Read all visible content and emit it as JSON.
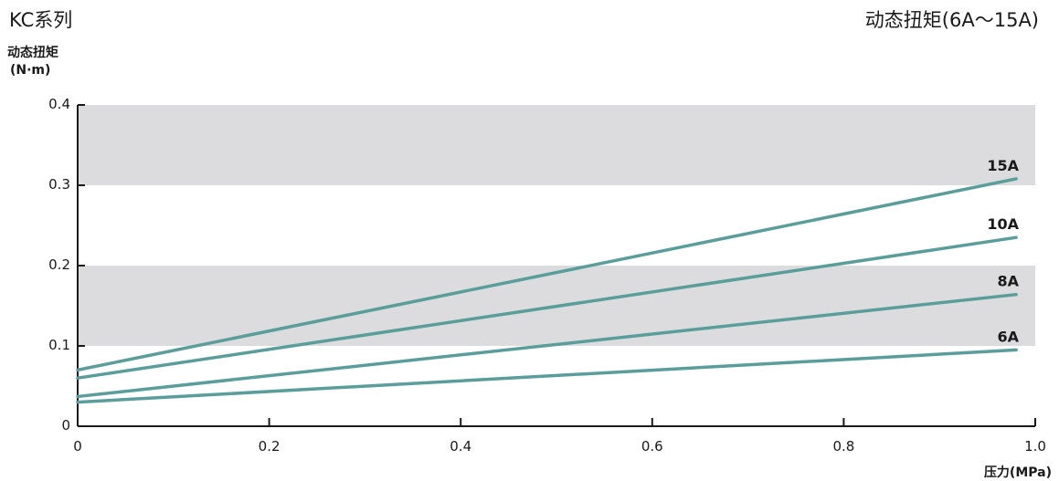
{
  "header": {
    "series_title": "KC系列",
    "chart_title": "动态扭矩(6A～15A)"
  },
  "colors": {
    "line": "#5a9e9c",
    "band": "#dcdcde",
    "axis": "#1a1a1a"
  },
  "chart_data": {
    "type": "line",
    "title": "动态扭矩(6A～15A)",
    "ylabel": "动态扭矩",
    "ylabel_unit": "(N·m)",
    "xlabel": "压力(MPa)",
    "xlim": [
      0,
      1.0
    ],
    "ylim": [
      0,
      0.4
    ],
    "x_ticks": [
      "0",
      "0.2",
      "0.4",
      "0.6",
      "0.8",
      "1.0"
    ],
    "y_ticks": [
      "0",
      "0.1",
      "0.2",
      "0.3",
      "0.4"
    ],
    "shaded_bands": [
      [
        0.1,
        0.2
      ],
      [
        0.3,
        0.4
      ]
    ],
    "grid": false,
    "legend": "inline labels at line ends",
    "series": [
      {
        "name": "15A",
        "x": [
          0,
          0.98
        ],
        "values": [
          0.07,
          0.308
        ]
      },
      {
        "name": "10A",
        "x": [
          0,
          0.98
        ],
        "values": [
          0.06,
          0.235
        ]
      },
      {
        "name": "8A",
        "x": [
          0,
          0.98
        ],
        "values": [
          0.037,
          0.164
        ]
      },
      {
        "name": "6A",
        "x": [
          0,
          0.98
        ],
        "values": [
          0.03,
          0.095
        ]
      }
    ]
  }
}
